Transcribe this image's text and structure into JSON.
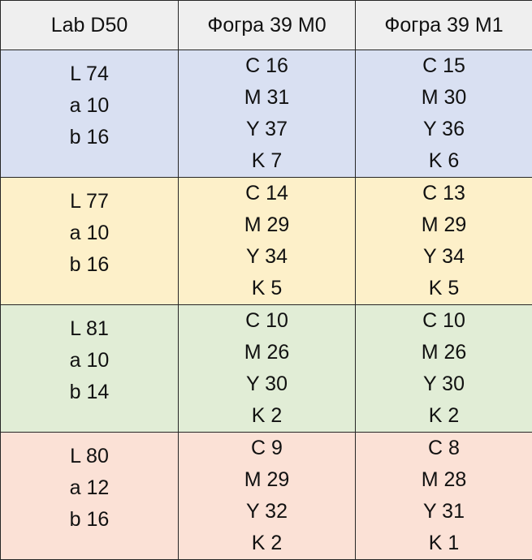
{
  "table": {
    "headers": [
      "Lab D50",
      "Фогра 39 M0",
      "Фогра 39 M1"
    ],
    "rows": [
      {
        "color": "#d9e0f2",
        "lab": [
          "L 74",
          "a 10",
          "b 16"
        ],
        "m0": [
          "C 16",
          "M 31",
          "Y 37",
          "K 7"
        ],
        "m1": [
          "C 15",
          "M 30",
          "Y 36",
          "K 6"
        ]
      },
      {
        "color": "#fdf0c9",
        "lab": [
          "L 77",
          "a 10",
          "b 16"
        ],
        "m0": [
          "C 14",
          "M 29",
          "Y 34",
          "K 5"
        ],
        "m1": [
          "C 13",
          "M 29",
          "Y 34",
          "K 5"
        ]
      },
      {
        "color": "#e1edd6",
        "lab": [
          "L 81",
          "a 10",
          "b 14"
        ],
        "m0": [
          "C 10",
          "M 26",
          "Y 30",
          "K 2"
        ],
        "m1": [
          "C 10",
          "M 26",
          "Y 30",
          "K 2"
        ]
      },
      {
        "color": "#fbe1d6",
        "lab": [
          "L 80",
          "a 12",
          "b 16"
        ],
        "m0": [
          "C 9",
          "M 29",
          "Y 32",
          "K 2"
        ],
        "m1": [
          "C 8",
          "M 28",
          "Y 31",
          "K 1"
        ]
      }
    ]
  }
}
